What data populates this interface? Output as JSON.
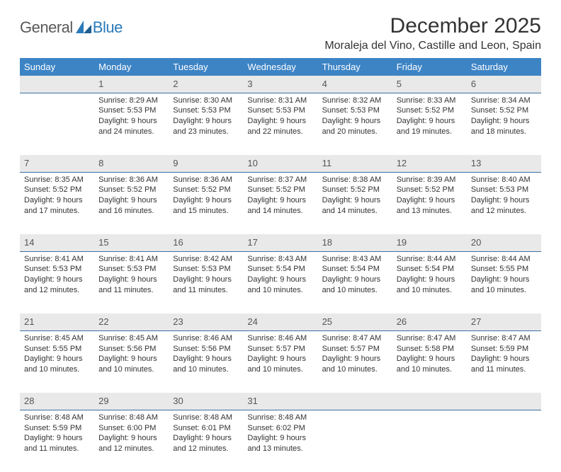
{
  "logo": {
    "general": "General",
    "blue": "Blue"
  },
  "title": "December 2025",
  "location": "Moraleja del Vino, Castille and Leon, Spain",
  "colors": {
    "header_bg": "#3d84c5",
    "header_text": "#ffffff",
    "daynum_bg": "#e9e9e9",
    "daynum_border": "#3d6fa3",
    "body_text": "#333333",
    "logo_gray": "#5a5a5a",
    "logo_blue": "#2a7ab9"
  },
  "weekdays": [
    "Sunday",
    "Monday",
    "Tuesday",
    "Wednesday",
    "Thursday",
    "Friday",
    "Saturday"
  ],
  "weeks": [
    [
      null,
      {
        "n": "1",
        "sr": "8:29 AM",
        "ss": "5:53 PM",
        "dl": "9 hours and 24 minutes."
      },
      {
        "n": "2",
        "sr": "8:30 AM",
        "ss": "5:53 PM",
        "dl": "9 hours and 23 minutes."
      },
      {
        "n": "3",
        "sr": "8:31 AM",
        "ss": "5:53 PM",
        "dl": "9 hours and 22 minutes."
      },
      {
        "n": "4",
        "sr": "8:32 AM",
        "ss": "5:53 PM",
        "dl": "9 hours and 20 minutes."
      },
      {
        "n": "5",
        "sr": "8:33 AM",
        "ss": "5:52 PM",
        "dl": "9 hours and 19 minutes."
      },
      {
        "n": "6",
        "sr": "8:34 AM",
        "ss": "5:52 PM",
        "dl": "9 hours and 18 minutes."
      }
    ],
    [
      {
        "n": "7",
        "sr": "8:35 AM",
        "ss": "5:52 PM",
        "dl": "9 hours and 17 minutes."
      },
      {
        "n": "8",
        "sr": "8:36 AM",
        "ss": "5:52 PM",
        "dl": "9 hours and 16 minutes."
      },
      {
        "n": "9",
        "sr": "8:36 AM",
        "ss": "5:52 PM",
        "dl": "9 hours and 15 minutes."
      },
      {
        "n": "10",
        "sr": "8:37 AM",
        "ss": "5:52 PM",
        "dl": "9 hours and 14 minutes."
      },
      {
        "n": "11",
        "sr": "8:38 AM",
        "ss": "5:52 PM",
        "dl": "9 hours and 14 minutes."
      },
      {
        "n": "12",
        "sr": "8:39 AM",
        "ss": "5:52 PM",
        "dl": "9 hours and 13 minutes."
      },
      {
        "n": "13",
        "sr": "8:40 AM",
        "ss": "5:53 PM",
        "dl": "9 hours and 12 minutes."
      }
    ],
    [
      {
        "n": "14",
        "sr": "8:41 AM",
        "ss": "5:53 PM",
        "dl": "9 hours and 12 minutes."
      },
      {
        "n": "15",
        "sr": "8:41 AM",
        "ss": "5:53 PM",
        "dl": "9 hours and 11 minutes."
      },
      {
        "n": "16",
        "sr": "8:42 AM",
        "ss": "5:53 PM",
        "dl": "9 hours and 11 minutes."
      },
      {
        "n": "17",
        "sr": "8:43 AM",
        "ss": "5:54 PM",
        "dl": "9 hours and 10 minutes."
      },
      {
        "n": "18",
        "sr": "8:43 AM",
        "ss": "5:54 PM",
        "dl": "9 hours and 10 minutes."
      },
      {
        "n": "19",
        "sr": "8:44 AM",
        "ss": "5:54 PM",
        "dl": "9 hours and 10 minutes."
      },
      {
        "n": "20",
        "sr": "8:44 AM",
        "ss": "5:55 PM",
        "dl": "9 hours and 10 minutes."
      }
    ],
    [
      {
        "n": "21",
        "sr": "8:45 AM",
        "ss": "5:55 PM",
        "dl": "9 hours and 10 minutes."
      },
      {
        "n": "22",
        "sr": "8:45 AM",
        "ss": "5:56 PM",
        "dl": "9 hours and 10 minutes."
      },
      {
        "n": "23",
        "sr": "8:46 AM",
        "ss": "5:56 PM",
        "dl": "9 hours and 10 minutes."
      },
      {
        "n": "24",
        "sr": "8:46 AM",
        "ss": "5:57 PM",
        "dl": "9 hours and 10 minutes."
      },
      {
        "n": "25",
        "sr": "8:47 AM",
        "ss": "5:57 PM",
        "dl": "9 hours and 10 minutes."
      },
      {
        "n": "26",
        "sr": "8:47 AM",
        "ss": "5:58 PM",
        "dl": "9 hours and 10 minutes."
      },
      {
        "n": "27",
        "sr": "8:47 AM",
        "ss": "5:59 PM",
        "dl": "9 hours and 11 minutes."
      }
    ],
    [
      {
        "n": "28",
        "sr": "8:48 AM",
        "ss": "5:59 PM",
        "dl": "9 hours and 11 minutes."
      },
      {
        "n": "29",
        "sr": "8:48 AM",
        "ss": "6:00 PM",
        "dl": "9 hours and 12 minutes."
      },
      {
        "n": "30",
        "sr": "8:48 AM",
        "ss": "6:01 PM",
        "dl": "9 hours and 12 minutes."
      },
      {
        "n": "31",
        "sr": "8:48 AM",
        "ss": "6:02 PM",
        "dl": "9 hours and 13 minutes."
      },
      null,
      null,
      null
    ]
  ],
  "labels": {
    "sunrise": "Sunrise:",
    "sunset": "Sunset:",
    "daylight": "Daylight:"
  }
}
